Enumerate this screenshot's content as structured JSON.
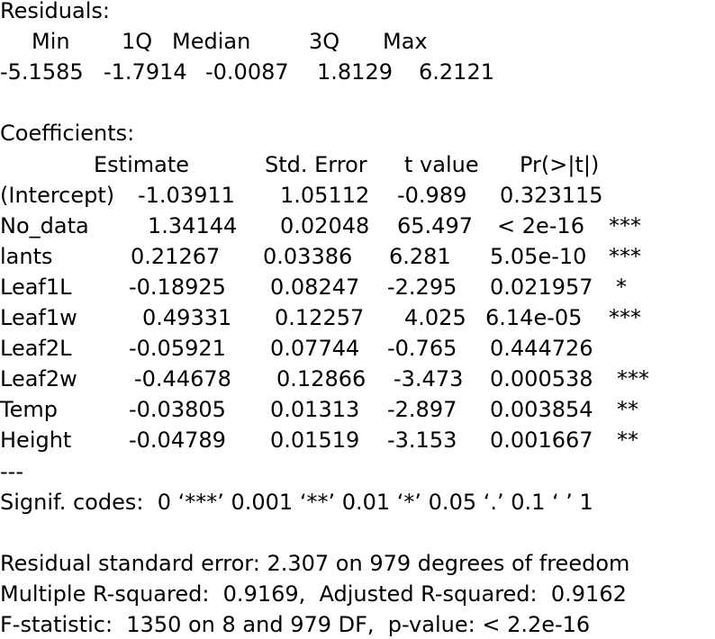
{
  "residuals": {
    "title": "Residuals:",
    "headers": [
      "Min",
      "1Q",
      "Median",
      "3Q",
      "Max"
    ],
    "values": [
      "-5.1585",
      "-1.7914",
      "-0.0087",
      "1.8129",
      "6.2121"
    ]
  },
  "coefficients": {
    "title": "Coefficients:",
    "headers": [
      "Estimate",
      "Std. Error",
      "t value",
      "Pr(>|t|)"
    ],
    "rows": [
      {
        "name": "(Intercept)",
        "estimate": "-1.03911",
        "std_error": "1.05112",
        "t_value": "-0.989",
        "p_value": "0.323115"
      },
      {
        "name": "No_data",
        "estimate": "1.34144",
        "std_error": "0.02048",
        "t_value": "65.497",
        "p_value": "< 2e-16",
        "signif": "***"
      },
      {
        "name": "lants",
        "estimate": "0.21267",
        "std_error": "0.03386",
        "t_value": "6.281",
        "p_value": "5.05e-10",
        "signif": "***"
      },
      {
        "name": "Leaf1L",
        "estimate": "-0.18925",
        "std_error": "0.08247",
        "t_value": "-2.295",
        "p_value": "0.021957",
        "signif": "*"
      },
      {
        "name": "Leaf1w",
        "estimate": "0.49331",
        "std_error": "0.12257",
        "t_value": "4.025",
        "p_value": "6.14e-05",
        "signif": "***"
      },
      {
        "name": "Leaf2L",
        "estimate": "-0.05921",
        "std_error": "0.07744",
        "t_value": "-0.765",
        "p_value": "0.444726"
      },
      {
        "name": "Leaf2w",
        "estimate": "-0.44678",
        "std_error": "0.12866",
        "t_value": "-3.473",
        "p_value": "0.000538",
        "signif": "***"
      },
      {
        "name": "Temp",
        "estimate": "-0.03805",
        "std_error": "0.01313",
        "t_value": "-2.897",
        "p_value": "0.003854",
        "signif": "**"
      },
      {
        "name": "Height",
        "estimate": "-0.04789",
        "std_error": "0.01519",
        "t_value": "-3.153",
        "p_value": "0.001667",
        "signif": "**"
      }
    ]
  },
  "separator": "---",
  "signif_codes": "Signif. codes:  0 ‘***’ 0.001 ‘**’ 0.01 ‘*’ 0.05 ‘.’ 0.1 ‘ ’ 1",
  "summary": [
    "Residual standard error: 2.307 on 979 degrees of freedom",
    "Multiple R-squared:  0.9169,  Adjusted R-squared:  0.9162",
    "F-statistic:  1350 on 8 and 979 DF,  p-value: < 2.2e-16"
  ]
}
